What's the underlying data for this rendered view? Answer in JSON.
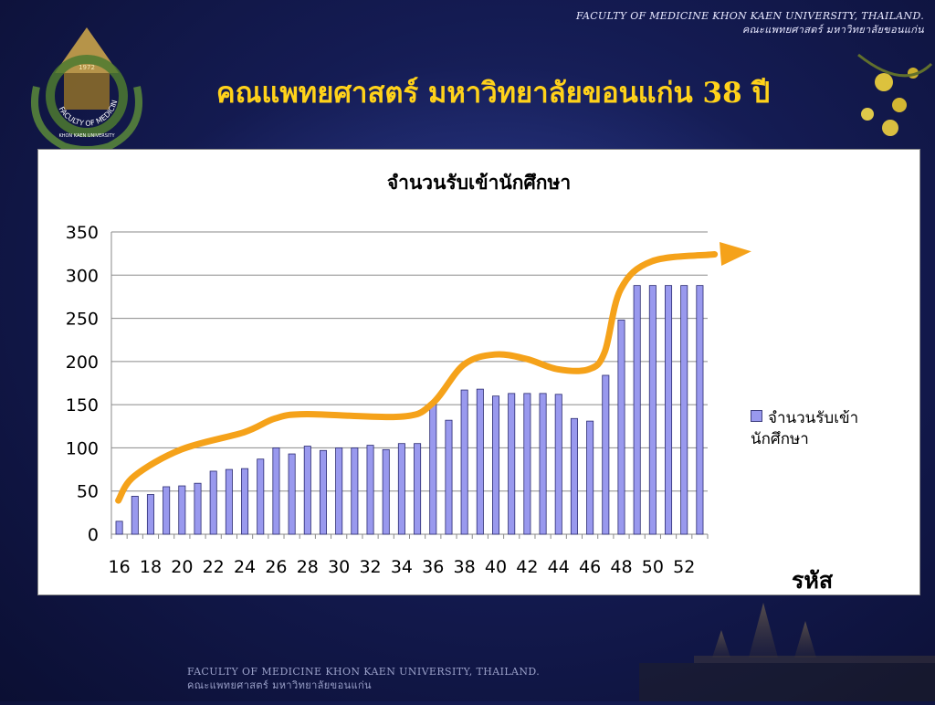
{
  "header": {
    "line1": "FACULTY OF MEDICINE KHON KAEN UNIVERSITY, THAILAND.",
    "line2": "คณะแพทยศาสตร์ มหาวิทยาลัยขอนแก่น"
  },
  "logo": {
    "ring_text": "FACULTY OF MEDICINE",
    "year": "1972",
    "lower_text": "KHON KAEN UNIVERSITY"
  },
  "slide": {
    "title": "คณแพทยศาสตร์ มหาวิทยาลัยขอนแก่น 38 ปี"
  },
  "footer": {
    "line1": "FACULTY OF MEDICINE KHON KAEN UNIVERSITY, THAILAND.",
    "line2": "คณะแพทยศาสตร์ มหาวิทยาลัยขอนแก่น"
  },
  "colors": {
    "bar_fill": "#9999ee",
    "bar_stroke": "#2a2a70",
    "trend_line": "#f5a21a",
    "title": "#ffd21a",
    "background": "#141b52"
  },
  "chart_data": {
    "type": "bar",
    "title": "จำนวนรับเข้านักศึกษา",
    "xlabel": "รหัส",
    "ylabel": "",
    "ylim": [
      0,
      350
    ],
    "yticks": [
      0,
      50,
      100,
      150,
      200,
      250,
      300,
      350
    ],
    "grid": true,
    "legend_position": "right",
    "categories": [
      "16",
      "17",
      "18",
      "19",
      "20",
      "21",
      "22",
      "23",
      "24",
      "25",
      "26",
      "27",
      "28",
      "29",
      "30",
      "31",
      "32",
      "33",
      "34",
      "35",
      "36",
      "37",
      "38",
      "39",
      "40",
      "41",
      "42",
      "43",
      "44",
      "45",
      "46",
      "47",
      "48",
      "49",
      "50",
      "51",
      "52",
      "53"
    ],
    "x_tick_labels": [
      "16",
      "18",
      "20",
      "22",
      "24",
      "26",
      "28",
      "30",
      "32",
      "34",
      "36",
      "38",
      "40",
      "42",
      "44",
      "46",
      "48",
      "50",
      "52"
    ],
    "series": [
      {
        "name": "จำนวนรับเข้านักศึกษา",
        "values": [
          15,
          44,
          46,
          55,
          56,
          59,
          73,
          75,
          76,
          87,
          100,
          93,
          102,
          97,
          100,
          100,
          103,
          98,
          105,
          105,
          151,
          132,
          167,
          168,
          160,
          163,
          163,
          163,
          162,
          134,
          131,
          184,
          248,
          288,
          288,
          288,
          288,
          288
        ]
      }
    ],
    "annotation": {
      "type": "trend-arrow",
      "points": [
        [
          16,
          38
        ],
        [
          17,
          66
        ],
        [
          20,
          97
        ],
        [
          24,
          117
        ],
        [
          26,
          133
        ],
        [
          28,
          138
        ],
        [
          34,
          135
        ],
        [
          36,
          150
        ],
        [
          38,
          195
        ],
        [
          40,
          207
        ],
        [
          42,
          202
        ],
        [
          44,
          190
        ],
        [
          46,
          190
        ],
        [
          47,
          210
        ],
        [
          48,
          282
        ],
        [
          50,
          315
        ],
        [
          54,
          323
        ],
        [
          56,
          326
        ]
      ]
    }
  }
}
